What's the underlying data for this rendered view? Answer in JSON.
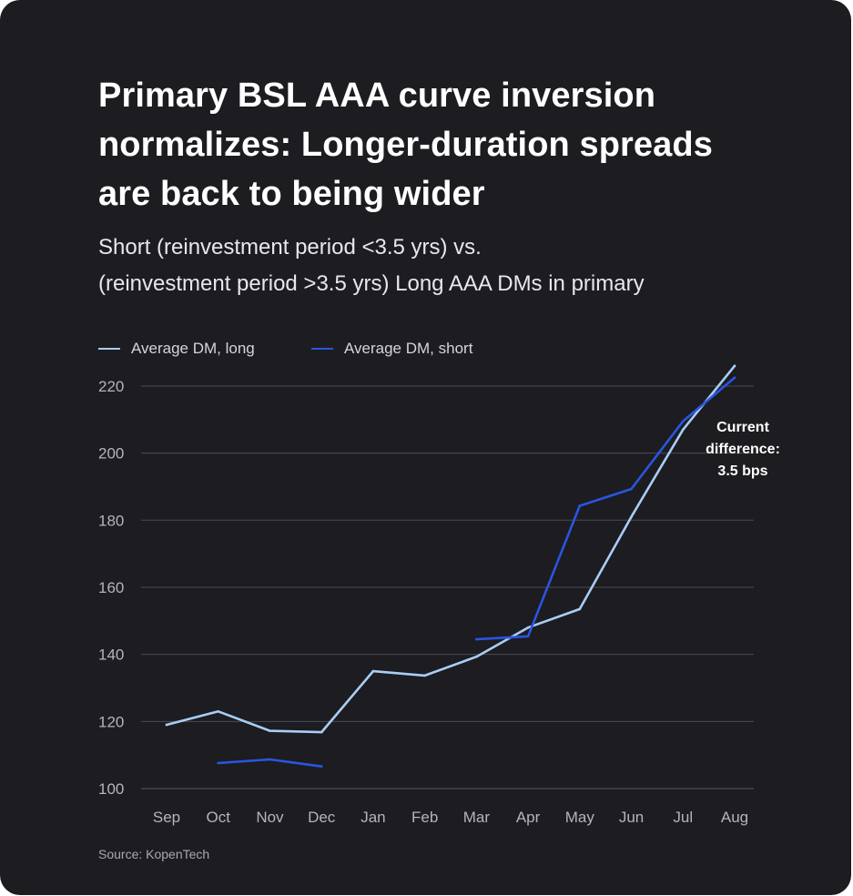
{
  "title_lines": [
    "Primary BSL AAA curve inversion",
    "normalizes: Longer-duration spreads",
    "are back to being wider"
  ],
  "subtitle_lines": [
    "Short (reinvestment period <3.5 yrs) vs.",
    "(reinvestment period >3.5 yrs) Long AAA DMs in primary"
  ],
  "source": "Source: KopenTech",
  "colors": {
    "background": "#1c1c21",
    "long": "#a9cdf5",
    "short": "#2a55e0",
    "grid": "#4a4a52"
  },
  "chart_data": {
    "type": "line",
    "categories": [
      "Sep",
      "Oct",
      "Nov",
      "Dec",
      "Jan",
      "Feb",
      "Mar",
      "Apr",
      "May",
      "Jun",
      "Jul",
      "Aug"
    ],
    "series": [
      {
        "name": "Average DM, long",
        "color": "#a9cdf5",
        "values": [
          119,
          123,
          117.2,
          116.8,
          135,
          133.7,
          139.3,
          148,
          153.5,
          181,
          207,
          226
        ]
      },
      {
        "name": "Average DM, short",
        "color": "#2a55e0",
        "values": [
          null,
          107.6,
          108.7,
          106.6,
          null,
          null,
          144.5,
          145.4,
          184.3,
          189.3,
          209.5,
          222.5
        ]
      }
    ],
    "y_ticks": [
      100,
      120,
      140,
      160,
      180,
      200,
      220
    ],
    "ylim": [
      100,
      226
    ],
    "grid": true,
    "legend_position": "top-left",
    "annotation": {
      "lines": [
        "Current",
        "difference:",
        "3.5 bps"
      ],
      "category": "Aug"
    }
  }
}
